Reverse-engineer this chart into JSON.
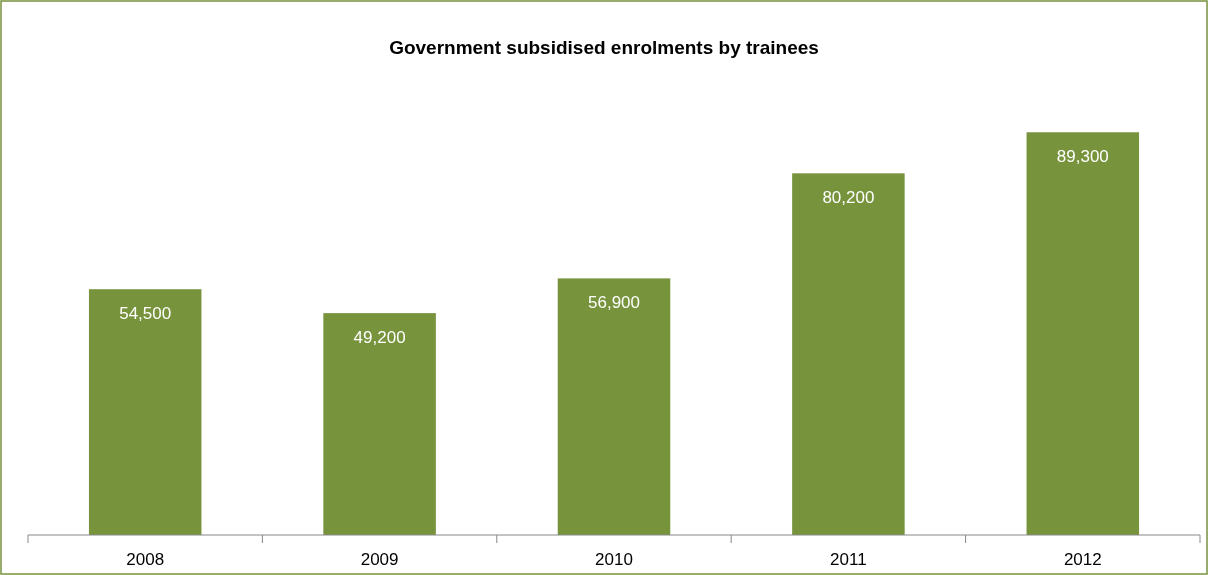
{
  "chart_data": {
    "type": "bar",
    "title": "Government subsidised enrolments by trainees",
    "categories": [
      "2008",
      "2009",
      "2010",
      "2011",
      "2012"
    ],
    "values": [
      54500,
      49200,
      56900,
      80200,
      89300
    ],
    "value_labels": [
      "54,500",
      "49,200",
      "56,900",
      "80,200",
      "89,300"
    ],
    "color": "#77933c"
  }
}
